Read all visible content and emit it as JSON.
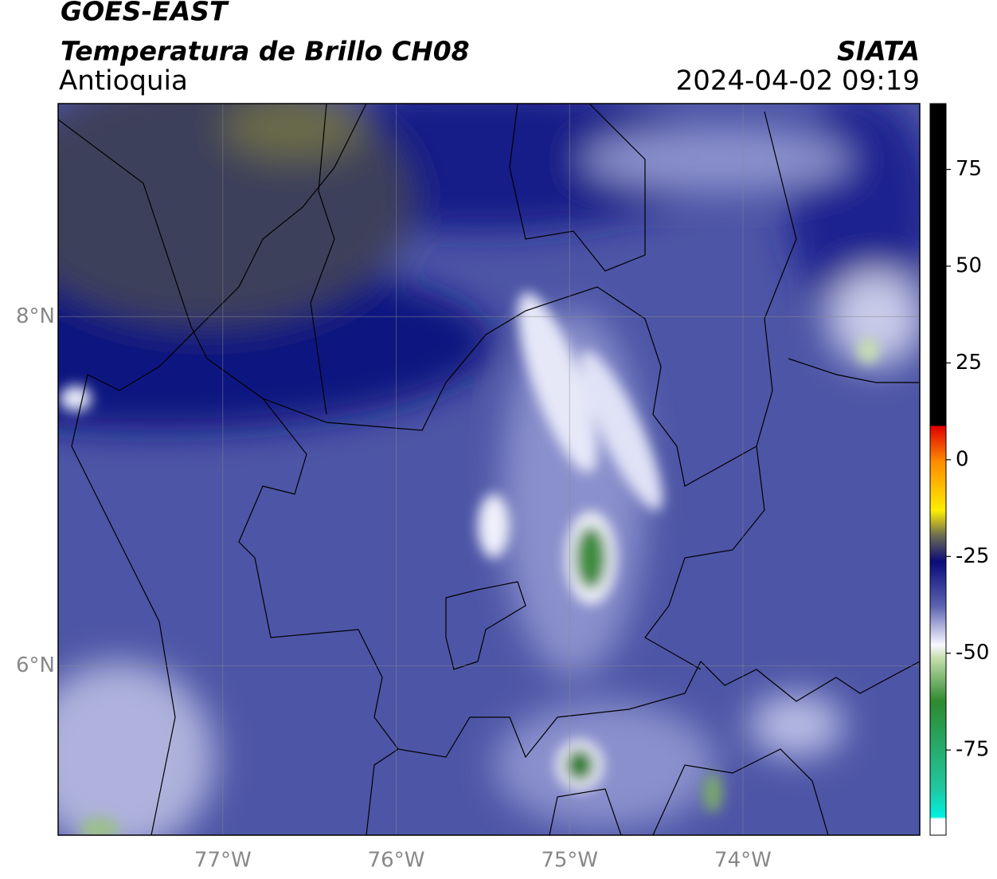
{
  "header": {
    "satellite": "GOES-EAST",
    "product": "Temperatura de Brillo CH08",
    "region": "Antioquia",
    "source": "SIATA",
    "datetime": "2024-04-02 09:19"
  },
  "map": {
    "xlim": [
      -77.95,
      -72.98
    ],
    "ylim": [
      5.03,
      9.22
    ],
    "xticks": [
      {
        "value": -77,
        "label": "77°W"
      },
      {
        "value": -76,
        "label": "76°W"
      },
      {
        "value": -75,
        "label": "75°W"
      },
      {
        "value": -74,
        "label": "74°W"
      }
    ],
    "yticks": [
      {
        "value": 8,
        "label": "8°N"
      },
      {
        "value": 6,
        "label": "6°N"
      }
    ],
    "grid": true
  },
  "colorbar": {
    "lim": [
      -97,
      92
    ],
    "ticks": [
      75,
      50,
      25,
      0,
      -25,
      -50,
      -75
    ]
  }
}
